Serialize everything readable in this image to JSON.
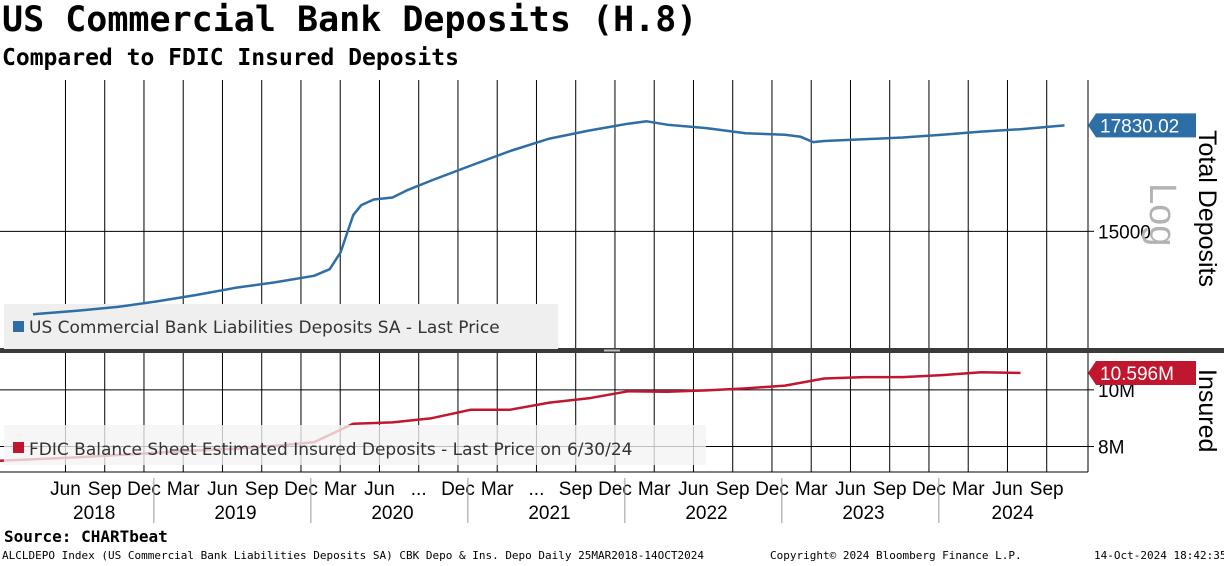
{
  "header": {
    "title": "US Commercial Bank Deposits (H.8)",
    "subtitle": "Compared to FDIC Insured Deposits"
  },
  "footer": {
    "source": "Source: CHARTbeat",
    "info": "ALCLDEPO Index (US Commercial Bank Liabilities Deposits SA) CBK Depo & Ins. Depo  Daily 25MAR2018-14OCT2024",
    "copyright": "Copyright© 2024 Bloomberg Finance L.P.",
    "timestamp": "14-Oct-2024 18:42:35"
  },
  "colors": {
    "total_line": "#2e6ea6",
    "insured_line": "#c0172f",
    "grid": "#000000"
  },
  "chart_data": [
    {
      "type": "line",
      "panel": "upper",
      "scale": "log",
      "scale_label": "Log",
      "ylabel": "Total Deposits",
      "yticks": [
        15000
      ],
      "ytick_labels": [
        "15000"
      ],
      "ylim": [
        12400,
        19200
      ],
      "last_value_label": "17830.02",
      "last_value": 17830.02,
      "legend": "US Commercial Bank Liabilities Deposits SA - Last Price",
      "series": [
        {
          "name": "US Commercial Bank Liabilities Deposits SA - Last Price",
          "x": [
            2018.21,
            2018.5,
            2018.75,
            2019.0,
            2019.25,
            2019.5,
            2019.75,
            2020.0,
            2020.1,
            2020.17,
            2020.21,
            2020.25,
            2020.3,
            2020.38,
            2020.5,
            2020.6,
            2020.75,
            2021.0,
            2021.25,
            2021.5,
            2021.75,
            2022.0,
            2022.12,
            2022.25,
            2022.5,
            2022.75,
            2023.0,
            2023.1,
            2023.18,
            2023.25,
            2023.5,
            2023.75,
            2024.0,
            2024.25,
            2024.5,
            2024.78
          ],
          "values": [
            13100,
            13180,
            13260,
            13380,
            13520,
            13680,
            13800,
            13950,
            14100,
            14500,
            14950,
            15400,
            15650,
            15800,
            15850,
            16050,
            16300,
            16700,
            17100,
            17450,
            17680,
            17880,
            17950,
            17850,
            17750,
            17600,
            17560,
            17500,
            17350,
            17380,
            17430,
            17480,
            17560,
            17650,
            17720,
            17830
          ]
        }
      ]
    },
    {
      "type": "line",
      "panel": "lower",
      "ylabel": "Insured",
      "yticks": [
        8000000,
        10000000
      ],
      "ytick_labels": [
        "8M",
        "10M"
      ],
      "ylim": [
        7100000,
        11300000
      ],
      "last_value_label": "10.596M",
      "last_value": 10596000,
      "legend": "FDIC Balance Sheet Estimated Insured Deposits - Last Price on 6/30/24",
      "series": [
        {
          "name": "FDIC Balance Sheet Estimated Insured Deposits - Last Price on 6/30/24",
          "x": [
            2018.0,
            2018.25,
            2018.5,
            2018.75,
            2019.0,
            2019.25,
            2019.5,
            2019.75,
            2020.0,
            2020.25,
            2020.5,
            2020.75,
            2021.0,
            2021.25,
            2021.5,
            2021.75,
            2022.0,
            2022.25,
            2022.5,
            2022.75,
            2023.0,
            2023.25,
            2023.5,
            2023.75,
            2024.0,
            2024.25,
            2024.5
          ],
          "values": [
            7500000,
            7560000,
            7620000,
            7700000,
            7780000,
            7860000,
            7920000,
            8020000,
            8150000,
            8800000,
            8850000,
            9000000,
            9300000,
            9300000,
            9550000,
            9700000,
            9950000,
            9930000,
            9980000,
            10050000,
            10150000,
            10400000,
            10450000,
            10450000,
            10520000,
            10620000,
            10596000
          ]
        }
      ]
    }
  ],
  "x_axis": {
    "month_labels": [
      {
        "label": "Jun",
        "t": 2018.417
      },
      {
        "label": "Sep",
        "t": 2018.667
      },
      {
        "label": "Dec",
        "t": 2018.917
      },
      {
        "label": "Mar",
        "t": 2019.167
      },
      {
        "label": "Jun",
        "t": 2019.417
      },
      {
        "label": "Sep",
        "t": 2019.667
      },
      {
        "label": "Dec",
        "t": 2019.917
      },
      {
        "label": "Mar",
        "t": 2020.167
      },
      {
        "label": "Jun",
        "t": 2020.417
      },
      {
        "label": "...",
        "t": 2020.667
      },
      {
        "label": "Dec",
        "t": 2020.917
      },
      {
        "label": "Mar",
        "t": 2021.167
      },
      {
        "label": "...",
        "t": 2021.417
      },
      {
        "label": "Sep",
        "t": 2021.667
      },
      {
        "label": "Dec",
        "t": 2021.917
      },
      {
        "label": "Mar",
        "t": 2022.167
      },
      {
        "label": "Jun",
        "t": 2022.417
      },
      {
        "label": "Sep",
        "t": 2022.667
      },
      {
        "label": "Dec",
        "t": 2022.917
      },
      {
        "label": "Mar",
        "t": 2023.167
      },
      {
        "label": "Jun",
        "t": 2023.417
      },
      {
        "label": "Sep",
        "t": 2023.667
      },
      {
        "label": "Dec",
        "t": 2023.917
      },
      {
        "label": "Mar",
        "t": 2024.167
      },
      {
        "label": "Jun",
        "t": 2024.417
      },
      {
        "label": "Sep",
        "t": 2024.667
      }
    ],
    "year_labels": [
      {
        "label": "2018",
        "t": 2018.6
      },
      {
        "label": "2019",
        "t": 2019.5
      },
      {
        "label": "2020",
        "t": 2020.5
      },
      {
        "label": "2021",
        "t": 2021.5
      },
      {
        "label": "2022",
        "t": 2022.5
      },
      {
        "label": "2023",
        "t": 2023.5
      },
      {
        "label": "2024",
        "t": 2024.45
      }
    ]
  }
}
